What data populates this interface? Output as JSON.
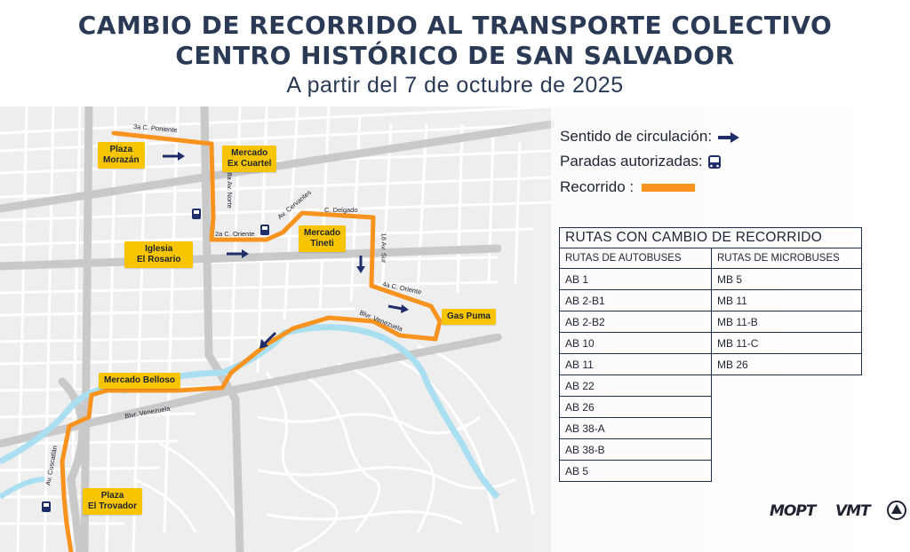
{
  "title_line1": "CAMBIO DE RECORRIDO AL TRANSPORTE COLECTIVO",
  "title_line2": "CENTRO HISTÓRICO DE SAN SALVADOR",
  "subtitle": "A partir del 7 de octubre de 2025",
  "legend": {
    "direction": "Sentido de circulación:",
    "stops": "Paradas autorizadas:",
    "route": "Recorrido :",
    "route_color": "#f7931e",
    "arrow_color": "#1f2d6b",
    "stop_icon": "bus-icon"
  },
  "places": {
    "plaza_morazan": "Plaza\nMorazán",
    "mercado_ex_cuartel": "Mercado\nEx Cuartel",
    "iglesia_el_rosario": "Iglesia\nEl Rosario",
    "mercado_tineti": "Mercado\nTineti",
    "gas_puma": "Gas Puma",
    "mercado_belloso": "Mercado Belloso",
    "plaza_el_trovador": "Plaza\nEl Trovador"
  },
  "streets": {
    "c3_poniente": "3a C. Poniente",
    "av8_norte": "8a Av. Norte",
    "c2_oriente": "2a C. Oriente",
    "av_cervantes": "Av. Cervantes",
    "c_delgado": "C. Delgado",
    "av18_sur": "18 Av. Sur",
    "c4_oriente": "4a C. Oriente",
    "blvr_venezuela_1": "Blvr. Venezuela",
    "blvr_venezuela_2": "Blvr. Venezuela",
    "av_cuscatlan": "Av. Cuscatlán"
  },
  "table": {
    "heading": "RUTAS CON CAMBIO DE RECORRIDO",
    "col_buses": "RUTAS DE AUTOBUSES",
    "col_micro": "RUTAS DE MICROBUSES",
    "buses": [
      "AB 1",
      "AB 2-B1",
      "AB 2-B2",
      "AB 10",
      "AB 11",
      "AB 22",
      "AB 26",
      "AB 38-A",
      "AB 38-B",
      "AB 5"
    ],
    "micro": [
      "MB 5",
      "MB 11",
      "MB 11-B",
      "MB 11-C",
      "MB 26"
    ]
  },
  "logos": {
    "mopt": "MOPT",
    "vmt": "VMT",
    "coat_of_arms": "el-salvador-coat-of-arms-icon"
  }
}
